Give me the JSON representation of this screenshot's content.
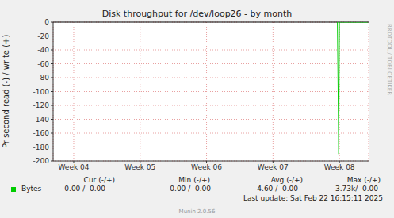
{
  "chart_data": {
    "type": "line",
    "title": "Disk throughput for /dev/loop26 - by month",
    "y_label": "Pr second read (-) / write (+)",
    "x": [
      7.97,
      7.99,
      8.0,
      8.43
    ],
    "series": [
      {
        "name": "Bytes",
        "color": "#00cc00",
        "values": [
          0,
          -190,
          0,
          0
        ]
      }
    ],
    "xlim": [
      3.69,
      8.44
    ],
    "xticks": [
      {
        "value": 4,
        "label": "Week 04"
      },
      {
        "value": 5,
        "label": "Week 05"
      },
      {
        "value": 6,
        "label": "Week 06"
      },
      {
        "value": 7,
        "label": "Week 07"
      },
      {
        "value": 8,
        "label": "Week 08"
      }
    ],
    "ylim": [
      -200,
      0
    ],
    "yticks": [
      -200,
      -180,
      -160,
      -140,
      -120,
      -100,
      -80,
      -60,
      -40,
      -20,
      0
    ],
    "grid": true,
    "stats": {
      "headers": [
        "Cur (-/+)",
        "Min (-/+)",
        "Avg (-/+)",
        "Max (-/+)"
      ],
      "rows": [
        {
          "name": "Bytes",
          "values": [
            "0.00 /  0.00",
            "0.00 /  0.00",
            "4.60 /  0.00",
            "3.73k/  0.00"
          ]
        }
      ]
    },
    "footer": "Last update: Sat Feb 22 16:15:11 2025",
    "credit": "Munin 2.0.56",
    "watermark": "RRDTOOL / TOBI OETIKER"
  }
}
